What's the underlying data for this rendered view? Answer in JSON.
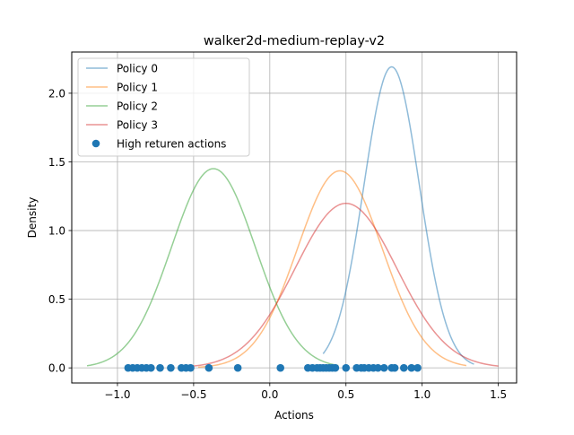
{
  "chart_data": {
    "type": "line",
    "title": "walker2d-medium-replay-v2",
    "xlabel": "Actions",
    "ylabel": "Density",
    "xlim": [
      -1.3,
      1.62
    ],
    "ylim": [
      -0.11,
      2.3
    ],
    "x_ticks": [
      -1.0,
      -0.5,
      0.0,
      0.5,
      1.0,
      1.5
    ],
    "x_tick_labels": [
      "−1.0",
      "−0.5",
      "0.0",
      "0.5",
      "1.0",
      "1.5"
    ],
    "y_ticks": [
      0.0,
      0.5,
      1.0,
      1.5,
      2.0
    ],
    "y_tick_labels": [
      "0.0",
      "0.5",
      "1.0",
      "1.5",
      "2.0"
    ],
    "grid": true,
    "legend_position": "top-left",
    "series": [
      {
        "name": "Policy 0",
        "color": "#1f77b4",
        "alpha": 0.5,
        "mean": 0.8,
        "std": 0.182,
        "x_range": [
          0.35,
          1.34
        ]
      },
      {
        "name": "Policy 1",
        "color": "#ff7f0e",
        "alpha": 0.5,
        "mean": 0.46,
        "std": 0.278,
        "x_range": [
          -0.47,
          1.29
        ]
      },
      {
        "name": "Policy 2",
        "color": "#2ca02c",
        "alpha": 0.5,
        "mean": -0.37,
        "std": 0.275,
        "x_range": [
          -1.2,
          0.45
        ]
      },
      {
        "name": "Policy 3",
        "color": "#d62728",
        "alpha": 0.5,
        "mean": 0.5,
        "std": 0.333,
        "x_range": [
          -0.52,
          1.5
        ]
      }
    ],
    "scatter": {
      "name": "High returen actions",
      "color": "#1f77b4",
      "y": 0.0,
      "x": [
        -0.93,
        -0.9,
        -0.87,
        -0.84,
        -0.81,
        -0.78,
        -0.72,
        -0.65,
        -0.58,
        -0.55,
        -0.52,
        -0.4,
        -0.21,
        0.07,
        0.25,
        0.28,
        0.31,
        0.33,
        0.35,
        0.37,
        0.39,
        0.41,
        0.43,
        0.5,
        0.57,
        0.6,
        0.62,
        0.65,
        0.68,
        0.71,
        0.75,
        0.8,
        0.82,
        0.88,
        0.93,
        0.97
      ]
    }
  }
}
